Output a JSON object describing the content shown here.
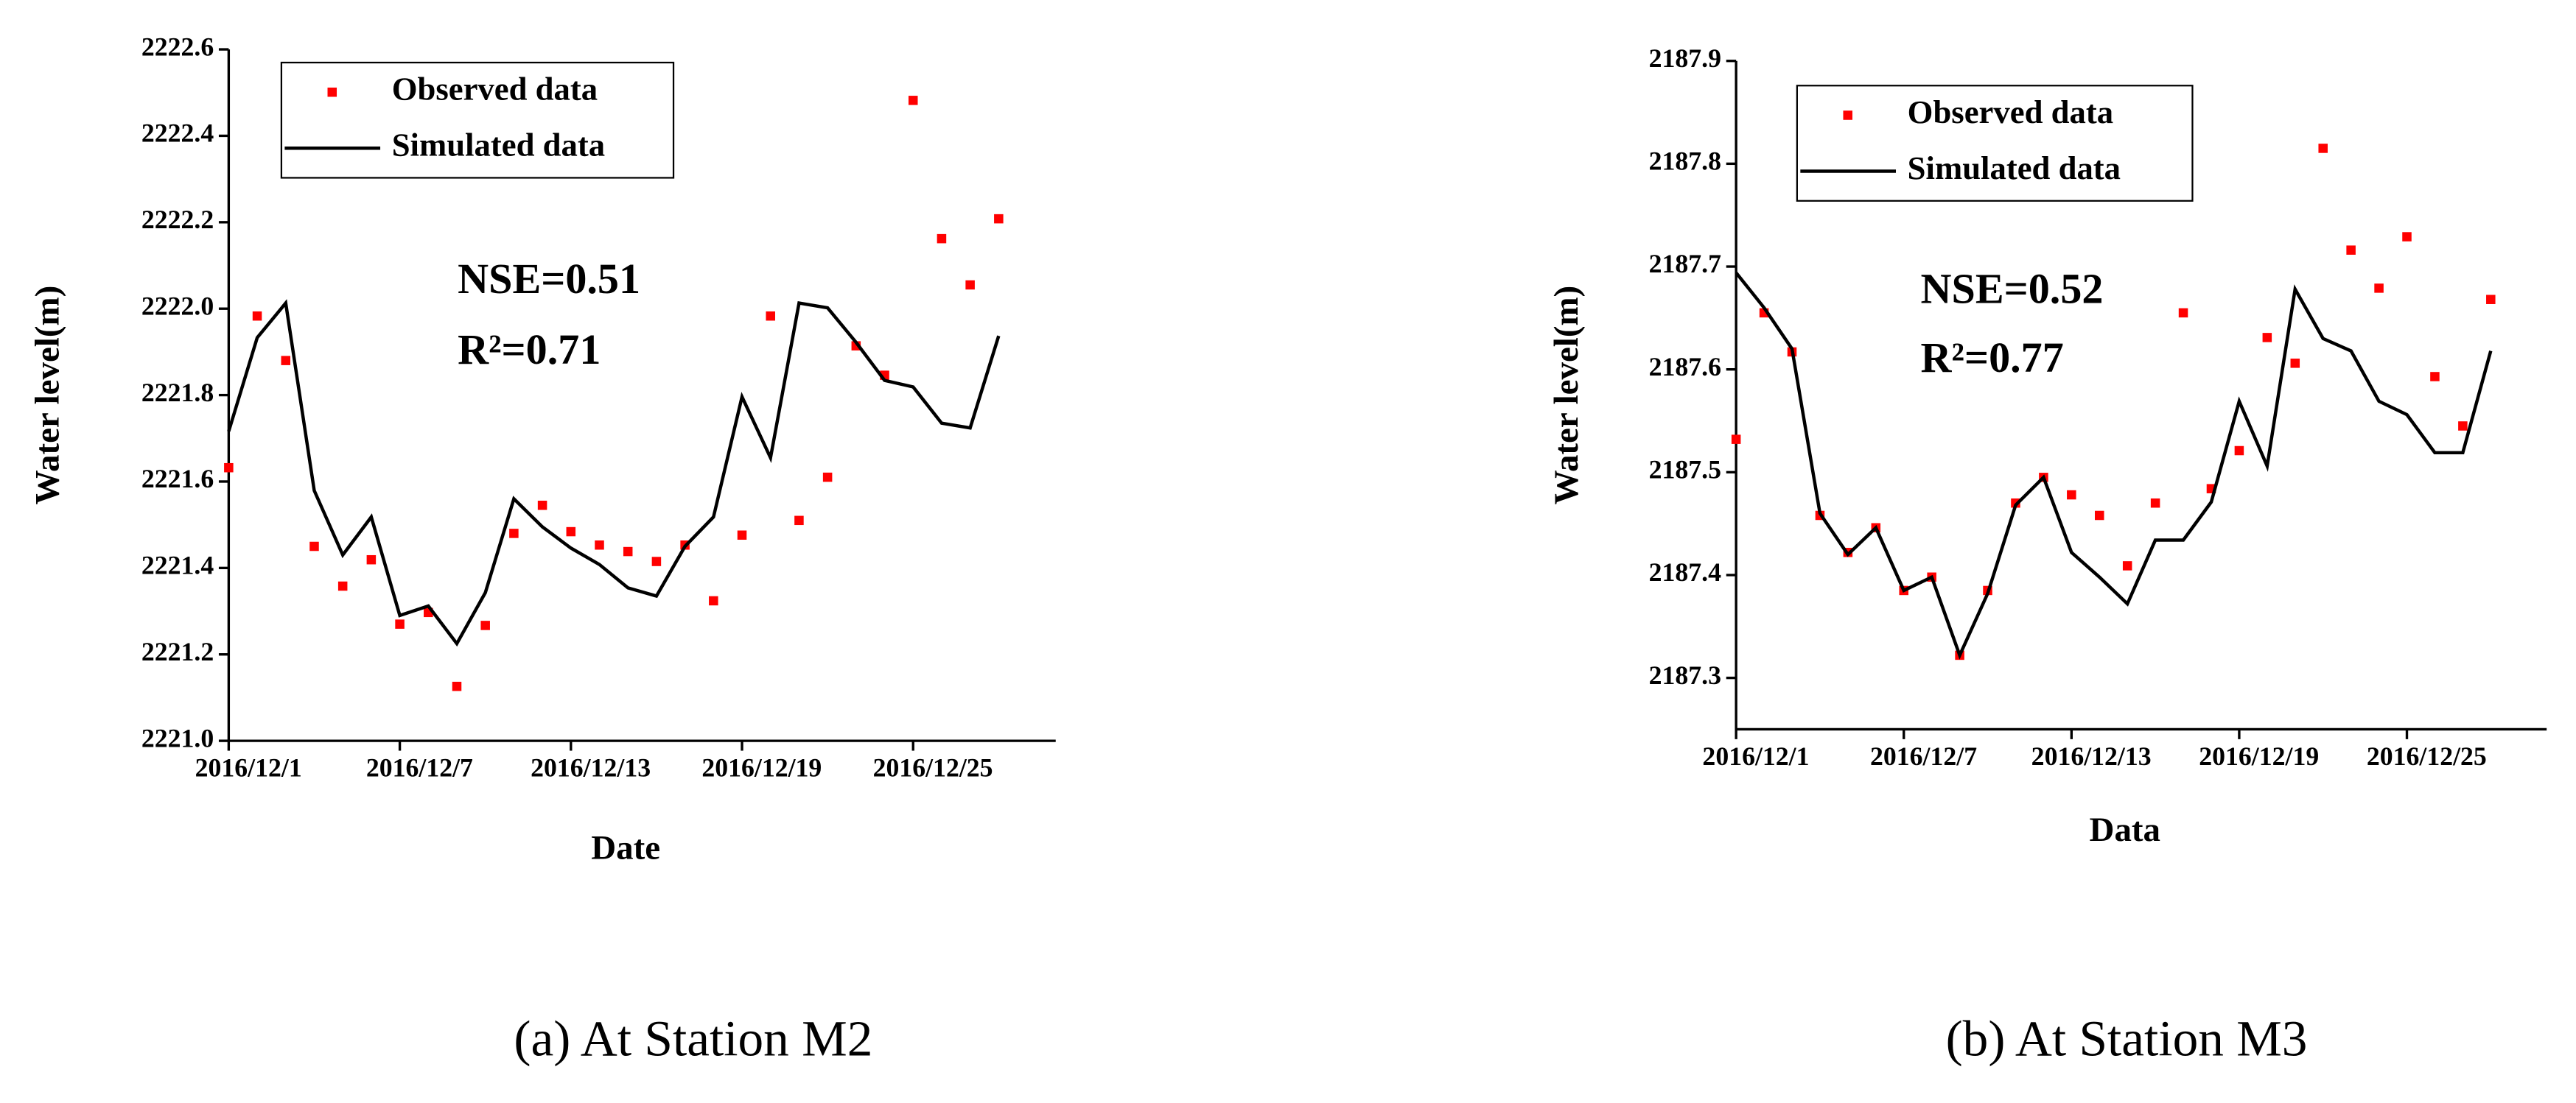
{
  "chart_data": [
    {
      "type": "line",
      "caption": "(a) At Station M2",
      "xlabel": "Date",
      "ylabel": "Water level(m)",
      "annotations": [
        "NSE=0.51",
        "R²=0.71"
      ],
      "legend": "upper left",
      "x": [
        "2016/12/1",
        "2016/12/2",
        "2016/12/3",
        "2016/12/4",
        "2016/12/5",
        "2016/12/6",
        "2016/12/7",
        "2016/12/8",
        "2016/12/9",
        "2016/12/10",
        "2016/12/11",
        "2016/12/12",
        "2016/12/13",
        "2016/12/14",
        "2016/12/15",
        "2016/12/16",
        "2016/12/17",
        "2016/12/18",
        "2016/12/19",
        "2016/12/20",
        "2016/12/21",
        "2016/12/22",
        "2016/12/23",
        "2016/12/24",
        "2016/12/25",
        "2016/12/26",
        "2016/12/27",
        "2016/12/28"
      ],
      "xlim": [
        "2016/12/1",
        "2016/12/30"
      ],
      "xticks": [
        "2016/12/1",
        "2016/12/7",
        "2016/12/13",
        "2016/12/19",
        "2016/12/25"
      ],
      "ylim": [
        2221,
        2222.6
      ],
      "yticks": [
        {
          "value": 2221,
          "label": "2221.0"
        },
        {
          "value": 2221.2,
          "label": "2221.2"
        },
        {
          "value": 2221.4,
          "label": "2221.4"
        },
        {
          "value": 2221.6,
          "label": "2221.6"
        },
        {
          "value": 2221.8,
          "label": "2221.8"
        },
        {
          "value": 2222,
          "label": "2222.0"
        },
        {
          "value": 2222.2,
          "label": "2222.2"
        },
        {
          "value": 2222.4,
          "label": "2222.4"
        },
        {
          "value": 2222.6,
          "label": "2222.6"
        }
      ],
      "series": [
        {
          "name": "Observed data",
          "color": "#ff0000",
          "mode": "markers",
          "values": [
            2221.632,
            2221.983,
            2221.88,
            2221.45,
            2221.358,
            2221.419,
            2221.27,
            2221.297,
            2221.126,
            2221.267,
            2221.48,
            2221.545,
            2221.484,
            2221.453,
            2221.438,
            2221.415,
            2221.453,
            2221.324,
            2221.476,
            2221.983,
            2221.51,
            2221.61,
            2221.914,
            2221.846,
            2222.482,
            2222.162,
            2222.055,
            2222.208
          ]
        },
        {
          "name": "Simulated data",
          "color": "#000000",
          "mode": "line",
          "values": [
            2221.716,
            2221.933,
            2222.013,
            2221.579,
            2221.43,
            2221.518,
            2221.29,
            2221.312,
            2221.225,
            2221.343,
            2221.56,
            2221.495,
            2221.446,
            2221.408,
            2221.354,
            2221.335,
            2221.45,
            2221.518,
            2221.796,
            2221.655,
            2222.013,
            2222.002,
            2221.922,
            2221.834,
            2221.819,
            2221.735,
            2221.724,
            2221.937
          ]
        }
      ]
    },
    {
      "type": "line",
      "caption": "(b) At Station M3",
      "xlabel": "Data",
      "ylabel": "Water level(m)",
      "annotations": [
        "NSE=0.52",
        "R²=0.77"
      ],
      "legend": "upper left",
      "x": [
        "2016/12/1",
        "2016/12/2",
        "2016/12/3",
        "2016/12/4",
        "2016/12/5",
        "2016/12/6",
        "2016/12/7",
        "2016/12/8",
        "2016/12/9",
        "2016/12/10",
        "2016/12/11",
        "2016/12/12",
        "2016/12/13",
        "2016/12/14",
        "2016/12/15",
        "2016/12/16",
        "2016/12/17",
        "2016/12/18",
        "2016/12/19",
        "2016/12/20",
        "2016/12/21",
        "2016/12/22",
        "2016/12/23",
        "2016/12/24",
        "2016/12/25",
        "2016/12/26",
        "2016/12/27",
        "2016/12/28"
      ],
      "xlim": [
        "2016/12/1",
        "2016/12/30"
      ],
      "xticks": [
        "2016/12/1",
        "2016/12/7",
        "2016/12/13",
        "2016/12/19",
        "2016/12/25"
      ],
      "ylim": [
        2187.25,
        2187.9
      ],
      "yticks": [
        {
          "value": 2187.3,
          "label": "2187.3"
        },
        {
          "value": 2187.4,
          "label": "2187.4"
        },
        {
          "value": 2187.5,
          "label": "2187.5"
        },
        {
          "value": 2187.6,
          "label": "2187.6"
        },
        {
          "value": 2187.7,
          "label": "2187.7"
        },
        {
          "value": 2187.8,
          "label": "2187.8"
        },
        {
          "value": 2187.9,
          "label": "2187.9"
        }
      ],
      "series": [
        {
          "name": "Observed data",
          "color": "#ff0000",
          "mode": "markers",
          "values": [
            2187.532,
            2187.655,
            2187.617,
            2187.458,
            2187.422,
            2187.446,
            2187.385,
            2187.398,
            2187.322,
            2187.385,
            2187.47,
            2187.495,
            2187.478,
            2187.458,
            2187.409,
            2187.47,
            2187.655,
            2187.484,
            2187.521,
            2187.631,
            2187.606,
            2187.815,
            2187.716,
            2187.679,
            2187.729,
            2187.593,
            2187.545,
            2187.668
          ]
        },
        {
          "name": "Simulated data",
          "color": "#000000",
          "mode": "line",
          "values": [
            2187.694,
            2187.66,
            2187.62,
            2187.46,
            2187.42,
            2187.446,
            2187.385,
            2187.398,
            2187.322,
            2187.382,
            2187.468,
            2187.495,
            2187.422,
            2187.398,
            2187.372,
            2187.434,
            2187.434,
            2187.471,
            2187.569,
            2187.506,
            2187.678,
            2187.63,
            2187.618,
            2187.569,
            2187.556,
            2187.519,
            2187.519,
            2187.618
          ]
        }
      ]
    }
  ]
}
